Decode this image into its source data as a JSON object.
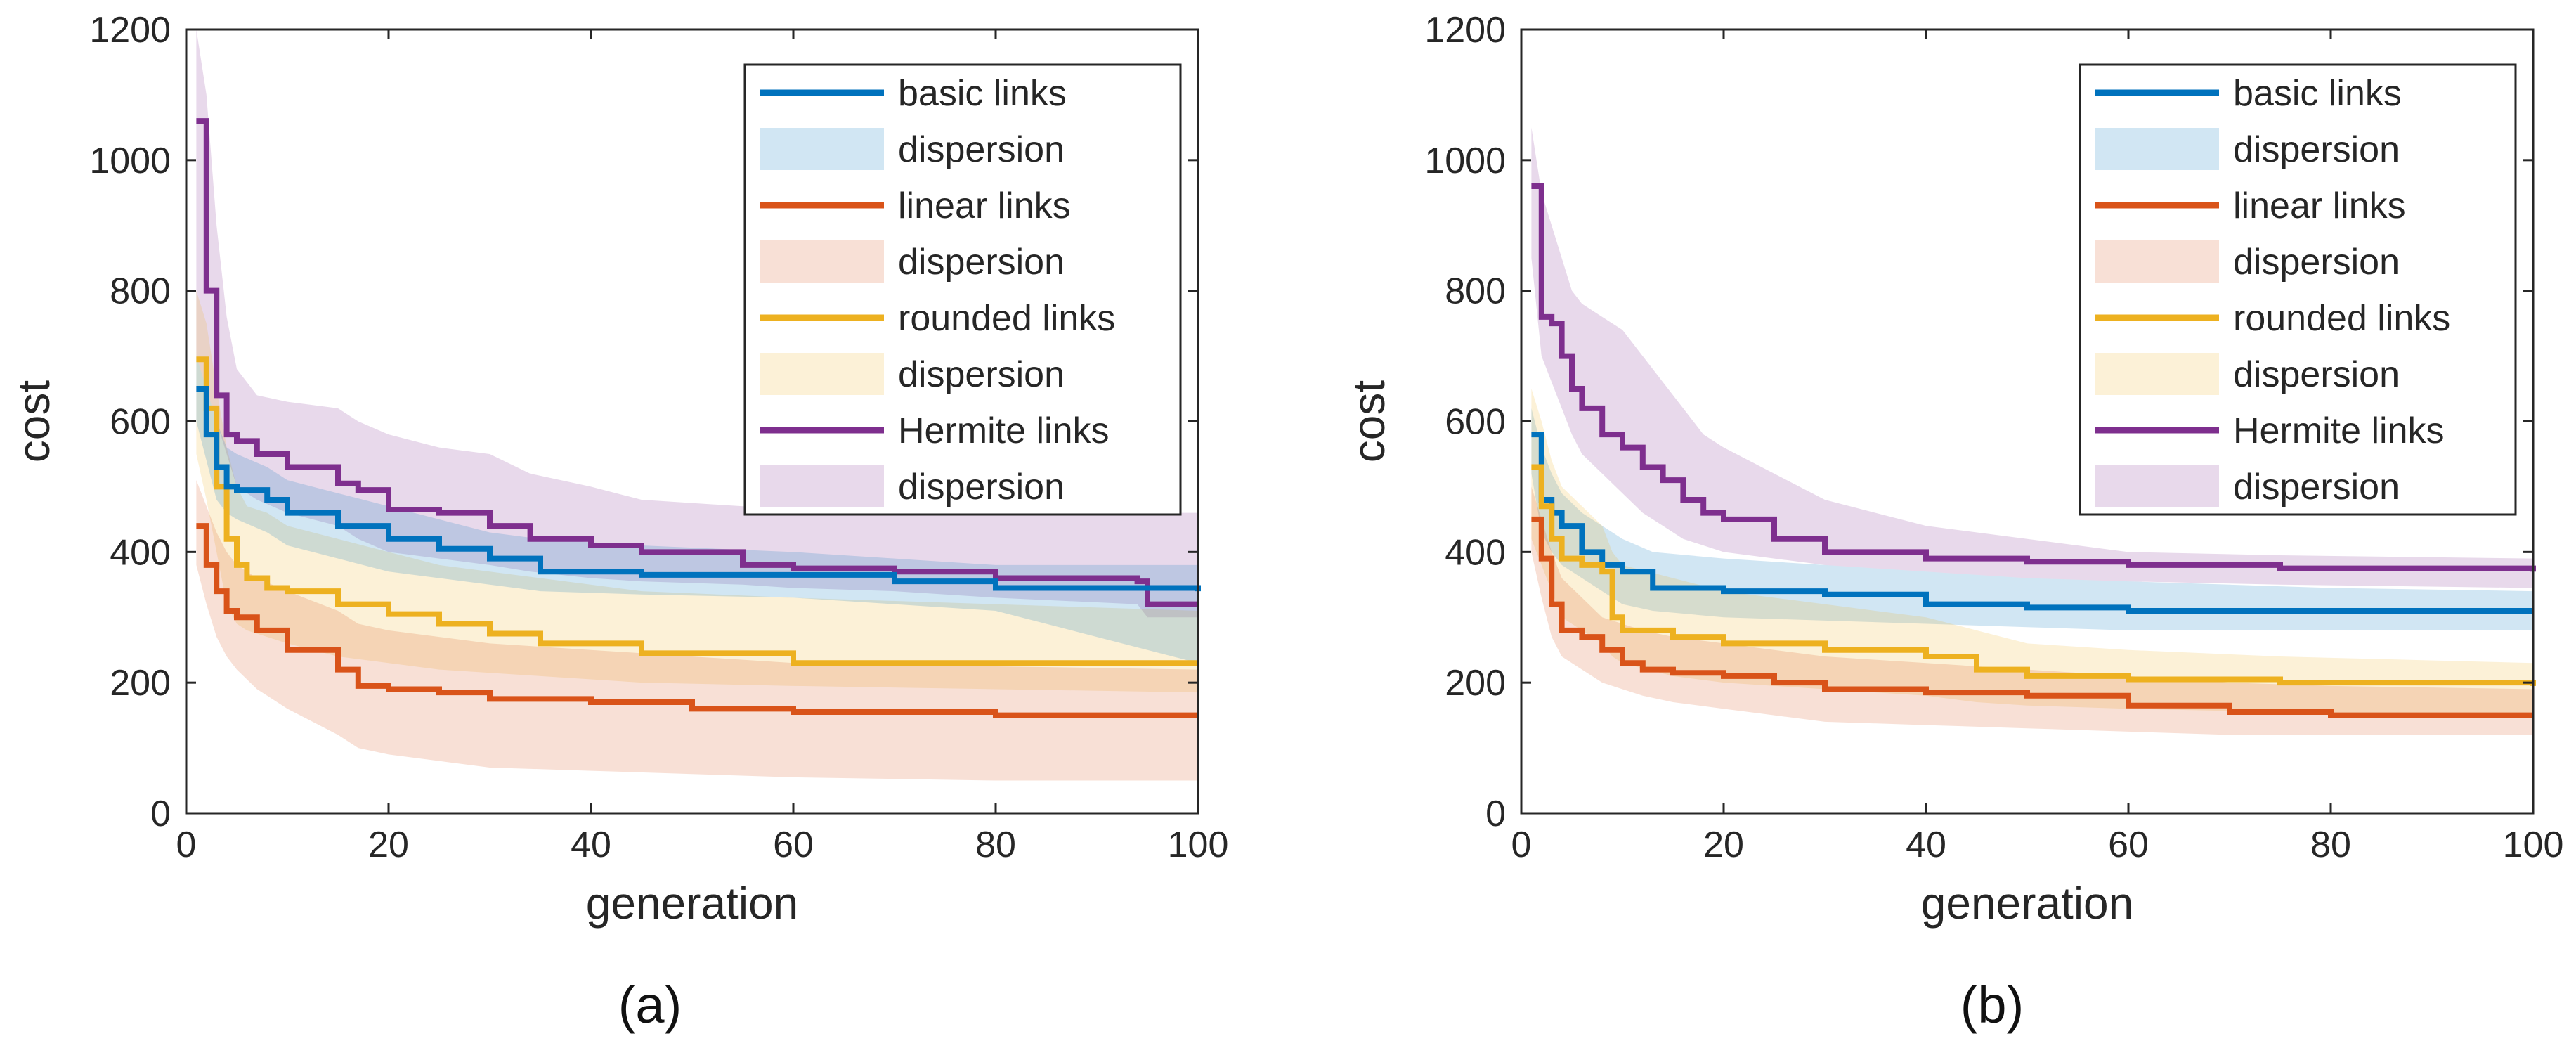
{
  "chart_data": [
    {
      "type": "line",
      "caption": "(a)",
      "xlabel": "generation",
      "ylabel": "cost",
      "xlim": [
        0,
        100
      ],
      "ylim": [
        0,
        1200
      ],
      "xticks": [
        0,
        20,
        40,
        60,
        80,
        100
      ],
      "yticks": [
        0,
        200,
        400,
        600,
        800,
        1000,
        1200
      ],
      "legend_position": "top-right",
      "grid": false,
      "series": [
        {
          "name": "Hermite links",
          "dispersion_label": "dispersion",
          "color": "#7E2F8E",
          "x": [
            1,
            2,
            3,
            4,
            5,
            7,
            10,
            15,
            17,
            20,
            25,
            30,
            34,
            40,
            45,
            55,
            60,
            70,
            80,
            94,
            95,
            100
          ],
          "y": [
            1060,
            800,
            640,
            580,
            570,
            550,
            530,
            505,
            495,
            465,
            460,
            440,
            420,
            410,
            400,
            380,
            375,
            370,
            360,
            355,
            320,
            320
          ],
          "upper": [
            1200,
            1100,
            900,
            760,
            680,
            640,
            630,
            620,
            600,
            580,
            560,
            550,
            520,
            500,
            480,
            470,
            470,
            470,
            465,
            460,
            460,
            460
          ],
          "lower": [
            700,
            650,
            600,
            550,
            500,
            480,
            460,
            440,
            420,
            400,
            390,
            380,
            370,
            360,
            355,
            350,
            345,
            340,
            330,
            320,
            300,
            300
          ]
        },
        {
          "name": "rounded links",
          "dispersion_label": "dispersion",
          "color": "#EDB120",
          "x": [
            1,
            2,
            3,
            4,
            5,
            6,
            8,
            10,
            15,
            20,
            25,
            30,
            35,
            45,
            60,
            80,
            100
          ],
          "y": [
            695,
            620,
            500,
            420,
            380,
            360,
            345,
            340,
            320,
            305,
            290,
            275,
            260,
            245,
            230,
            230,
            230
          ],
          "upper": [
            800,
            750,
            650,
            560,
            500,
            470,
            460,
            440,
            420,
            400,
            380,
            370,
            360,
            340,
            330,
            320,
            310
          ],
          "lower": [
            550,
            480,
            400,
            320,
            290,
            280,
            270,
            260,
            240,
            230,
            220,
            215,
            210,
            200,
            195,
            190,
            185
          ]
        },
        {
          "name": "basic links",
          "dispersion_label": "dispersion",
          "color": "#0072BD",
          "x": [
            1,
            2,
            3,
            4,
            5,
            8,
            10,
            15,
            20,
            25,
            30,
            35,
            45,
            60,
            70,
            80,
            100
          ],
          "y": [
            650,
            580,
            530,
            500,
            495,
            480,
            460,
            440,
            420,
            405,
            390,
            370,
            365,
            365,
            355,
            345,
            340
          ],
          "upper": [
            700,
            650,
            600,
            560,
            550,
            530,
            510,
            490,
            470,
            450,
            430,
            420,
            410,
            400,
            390,
            380,
            380
          ],
          "lower": [
            600,
            540,
            480,
            460,
            450,
            430,
            410,
            390,
            370,
            360,
            350,
            340,
            335,
            330,
            320,
            310,
            230
          ]
        },
        {
          "name": "linear links",
          "dispersion_label": "dispersion",
          "color": "#D95319",
          "x": [
            1,
            2,
            3,
            4,
            5,
            7,
            10,
            15,
            17,
            20,
            25,
            30,
            40,
            50,
            60,
            80,
            100
          ],
          "y": [
            440,
            380,
            340,
            310,
            300,
            280,
            250,
            220,
            195,
            190,
            185,
            175,
            170,
            160,
            155,
            150,
            150
          ],
          "upper": [
            510,
            470,
            430,
            400,
            380,
            360,
            340,
            310,
            290,
            280,
            270,
            260,
            250,
            240,
            230,
            225,
            220
          ],
          "lower": [
            380,
            320,
            270,
            240,
            220,
            190,
            160,
            120,
            100,
            90,
            80,
            70,
            65,
            60,
            55,
            50,
            50
          ]
        }
      ]
    },
    {
      "type": "line",
      "caption": "(b)",
      "xlabel": "generation",
      "ylabel": "cost",
      "xlim": [
        0,
        100
      ],
      "ylim": [
        0,
        1200
      ],
      "xticks": [
        0,
        20,
        40,
        60,
        80,
        100
      ],
      "yticks": [
        0,
        200,
        400,
        600,
        800,
        1000,
        1200
      ],
      "legend_position": "top-right",
      "grid": false,
      "series": [
        {
          "name": "Hermite links",
          "dispersion_label": "dispersion",
          "color": "#7E2F8E",
          "x": [
            1,
            2,
            3,
            4,
            5,
            6,
            8,
            10,
            12,
            14,
            16,
            18,
            20,
            25,
            30,
            40,
            50,
            60,
            75,
            100
          ],
          "y": [
            960,
            760,
            750,
            700,
            650,
            620,
            580,
            560,
            530,
            510,
            480,
            460,
            450,
            420,
            400,
            390,
            385,
            380,
            375,
            370
          ],
          "upper": [
            1050,
            950,
            900,
            850,
            800,
            780,
            760,
            740,
            700,
            660,
            620,
            580,
            560,
            520,
            480,
            440,
            420,
            400,
            395,
            390
          ],
          "lower": [
            850,
            700,
            660,
            620,
            580,
            550,
            520,
            490,
            460,
            440,
            420,
            410,
            400,
            390,
            380,
            370,
            360,
            355,
            350,
            345
          ]
        },
        {
          "name": "basic links",
          "dispersion_label": "dispersion",
          "color": "#0072BD",
          "x": [
            1,
            2,
            3,
            4,
            6,
            8,
            10,
            13,
            20,
            30,
            40,
            50,
            60,
            70,
            80,
            100
          ],
          "y": [
            580,
            480,
            460,
            440,
            400,
            380,
            370,
            345,
            340,
            335,
            320,
            315,
            310,
            310,
            310,
            310
          ],
          "upper": [
            620,
            560,
            520,
            490,
            460,
            440,
            420,
            400,
            390,
            380,
            370,
            360,
            355,
            350,
            345,
            340
          ],
          "lower": [
            520,
            430,
            400,
            380,
            360,
            340,
            320,
            310,
            300,
            295,
            290,
            285,
            280,
            280,
            280,
            280
          ]
        },
        {
          "name": "rounded links",
          "dispersion_label": "dispersion",
          "color": "#EDB120",
          "x": [
            1,
            2,
            3,
            4,
            6,
            8,
            9,
            10,
            15,
            20,
            30,
            40,
            45,
            50,
            60,
            75,
            100
          ],
          "y": [
            530,
            470,
            420,
            390,
            380,
            370,
            300,
            280,
            270,
            260,
            250,
            240,
            220,
            210,
            205,
            200,
            195
          ],
          "upper": [
            650,
            600,
            540,
            500,
            470,
            440,
            400,
            380,
            360,
            340,
            320,
            300,
            280,
            260,
            250,
            240,
            230
          ],
          "lower": [
            420,
            380,
            340,
            300,
            280,
            260,
            240,
            230,
            210,
            200,
            190,
            180,
            170,
            165,
            160,
            155,
            150
          ]
        },
        {
          "name": "linear links",
          "dispersion_label": "dispersion",
          "color": "#D95319",
          "x": [
            1,
            2,
            3,
            4,
            6,
            8,
            10,
            12,
            15,
            20,
            25,
            30,
            40,
            50,
            60,
            70,
            80,
            100
          ],
          "y": [
            450,
            390,
            320,
            280,
            270,
            250,
            230,
            220,
            215,
            210,
            200,
            190,
            185,
            180,
            165,
            155,
            150,
            150
          ],
          "upper": [
            500,
            450,
            400,
            360,
            330,
            300,
            290,
            280,
            270,
            260,
            250,
            240,
            230,
            220,
            210,
            200,
            195,
            190
          ],
          "lower": [
            400,
            330,
            270,
            240,
            220,
            200,
            190,
            180,
            170,
            160,
            150,
            140,
            135,
            130,
            125,
            120,
            120,
            120
          ]
        }
      ]
    }
  ],
  "legend_order": [
    "basic links",
    "linear links",
    "rounded links",
    "Hermite links"
  ]
}
